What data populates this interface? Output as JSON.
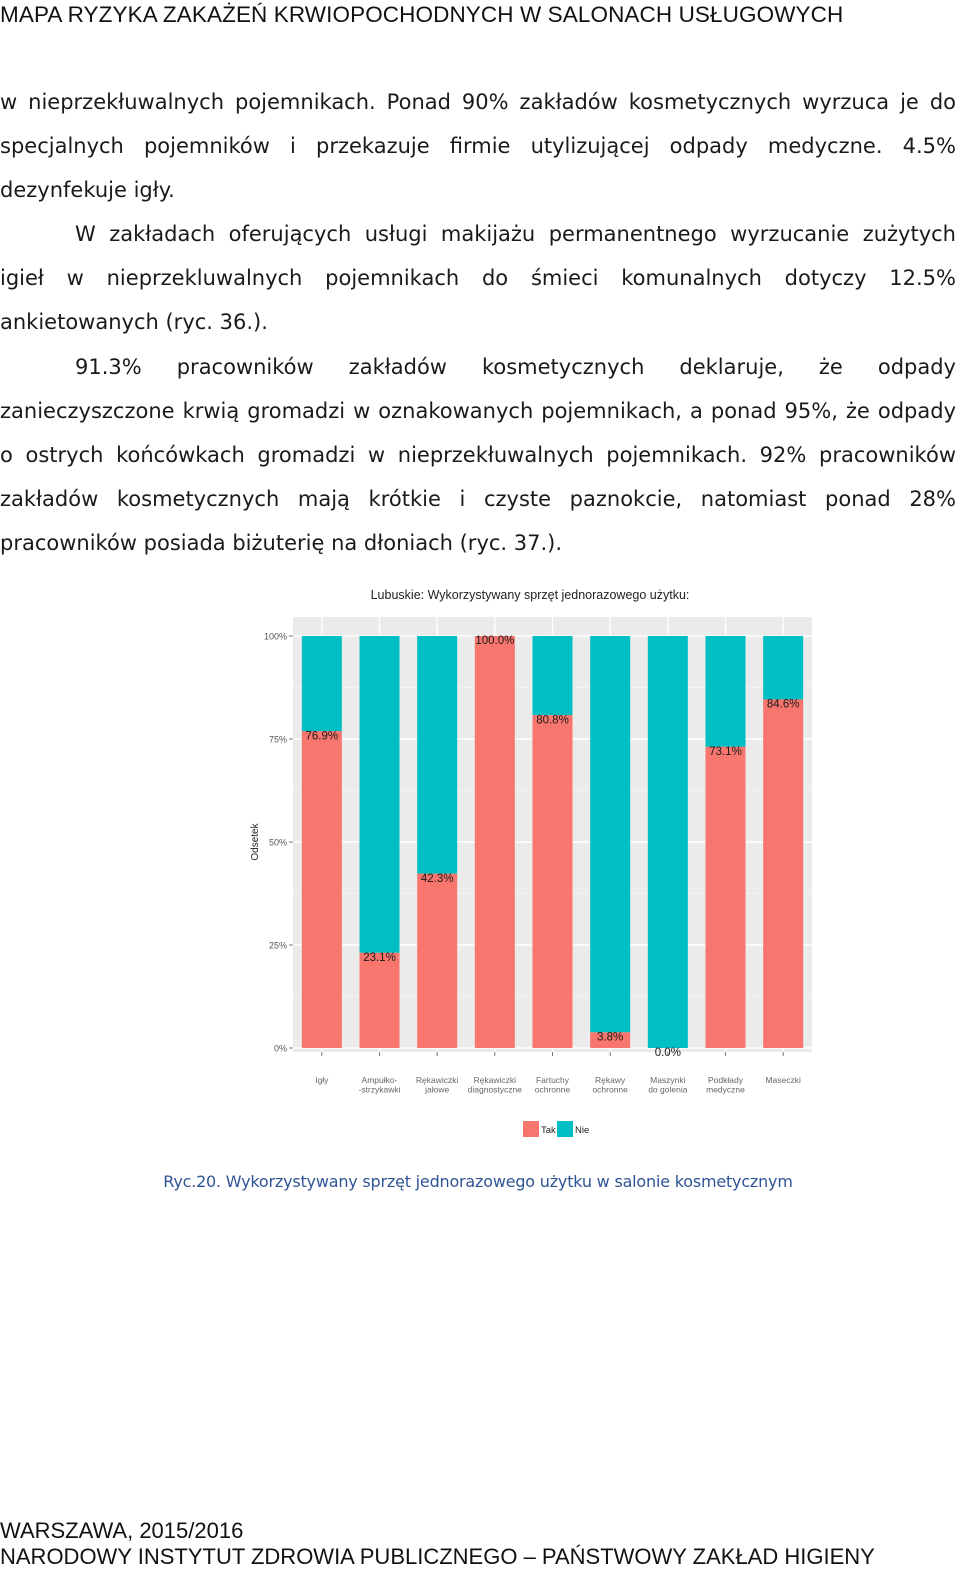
{
  "header": {
    "title": "MAPA RYZYKA ZAKAŻEŃ KRWIOPOCHODNYCH W SALONACH USŁUGOWYCH"
  },
  "body": {
    "paragraphs": [
      "w nieprzekłuwalnych pojemnikach. Ponad 90% zakładów kosmetycznych wyrzuca je do specjalnych pojemników i przekazuje firmie utylizującej odpady medyczne. 4.5% dezynfekuje igły.",
      "W zakładach oferujących usługi makijażu permanentnego wyrzucanie zużytych igieł w nieprzekluwalnych pojemnikach do śmieci komunalnych dotyczy 12.5% ankietowanych (ryc. 36.).",
      "91.3% pracowników zakładów kosmetycznych deklaruje, że odpady zanieczyszczone krwią gromadzi w oznakowanych pojemnikach, a ponad 95%, że odpady o ostrych końcówkach gromadzi w nieprzekłuwalnych pojemnikach. 92% pracowników zakładów kosmetycznych mają krótkie i czyste paznokcie, natomiast ponad 28% pracowników posiada biżuterię na dłoniach (ryc. 37.)."
    ]
  },
  "chart_data": {
    "type": "bar",
    "stacked": true,
    "title": "Lubuskie: Wykorzystywany sprzęt jednorazowego użytku:",
    "ylabel": "Odsetek",
    "xlabel": "",
    "ylim": [
      0,
      100
    ],
    "yticks": [
      "0%",
      "25%",
      "50%",
      "75%",
      "100%"
    ],
    "grid": true,
    "legend_position": "bottom",
    "categories": [
      [
        "Igły"
      ],
      [
        "Ampułko-",
        "-strzykawki"
      ],
      [
        "Rękawiczki",
        "jałowe"
      ],
      [
        "Rękawiczki",
        "diagnostyczne"
      ],
      [
        "Fartuchy",
        "ochronne"
      ],
      [
        "Rękawy",
        "ochronne"
      ],
      [
        "Maszynki",
        "do golenia"
      ],
      [
        "Podkłady",
        "medyczne"
      ],
      [
        "Maseczki"
      ]
    ],
    "series": [
      {
        "name": "Tak",
        "color": "#F8766D",
        "values": [
          76.9,
          23.1,
          42.3,
          100.0,
          80.8,
          3.8,
          0.0,
          73.1,
          84.6
        ]
      },
      {
        "name": "Nie",
        "color": "#00BFC4",
        "values": [
          23.1,
          76.9,
          57.7,
          0.0,
          19.2,
          96.2,
          100.0,
          26.9,
          15.4
        ]
      }
    ],
    "data_labels": [
      "76.9%",
      "23.1%",
      "42.3%",
      "100.0%",
      "80.8%",
      "3.8%",
      "0.0%",
      "73.1%",
      "84.6%"
    ]
  },
  "caption": "Ryc.20. Wykorzystywany sprzęt jednorazowego użytku w salonie kosmetycznym",
  "footer": {
    "line1": "WARSZAWA, 2015/2016",
    "line2": "NARODOWY INSTYTUT ZDROWIA PUBLICZNEGO – PAŃSTWOWY ZAKŁAD HIGIENY"
  }
}
